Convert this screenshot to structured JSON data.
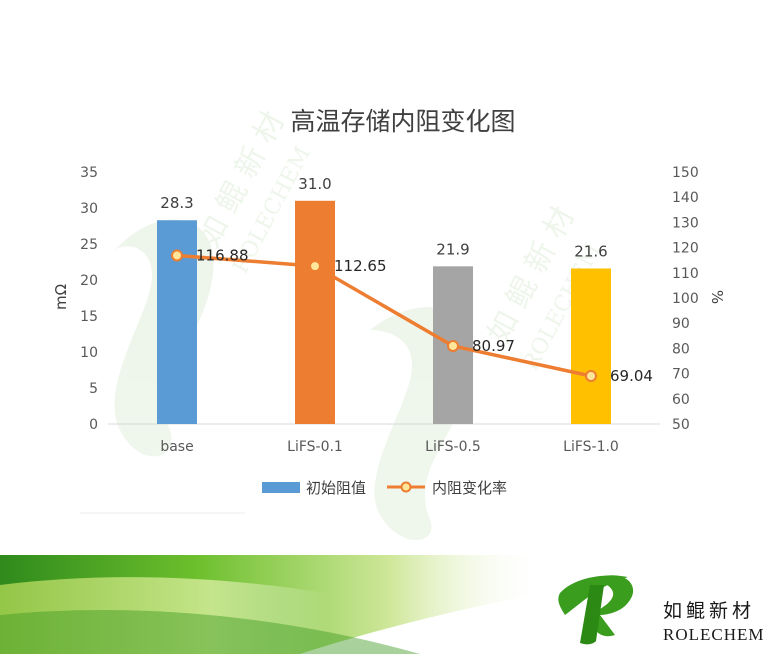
{
  "chart_data": {
    "type": "bar",
    "title": "高温存储内阻变化图",
    "categories": [
      "base",
      "LiFS-0.1",
      "LiFS-0.5",
      "LiFS-1.0"
    ],
    "series": [
      {
        "name": "初始阻值",
        "type": "bar",
        "axis": "left",
        "values": [
          28.3,
          31.0,
          21.9,
          21.6
        ],
        "labels": [
          "28.3",
          "31.0",
          "21.9",
          "21.6"
        ],
        "colors": [
          "#5b9bd5",
          "#ed7d31",
          "#a5a5a5",
          "#ffc000"
        ]
      },
      {
        "name": "内阻变化率",
        "type": "line",
        "axis": "right",
        "values": [
          116.88,
          112.65,
          80.97,
          69.04
        ],
        "labels": [
          "116.88",
          "112.65",
          "80.97",
          "69.04"
        ],
        "color": "#ed7d31"
      }
    ],
    "ylabel": "mΩ",
    "y2label": "%",
    "ylim": [
      0,
      35
    ],
    "y2lim": [
      50,
      150
    ],
    "yticks": [
      "0",
      "5",
      "10",
      "15",
      "20",
      "25",
      "30",
      "35"
    ],
    "y2ticks": [
      "50",
      "60",
      "70",
      "80",
      "90",
      "100",
      "110",
      "120",
      "130",
      "140",
      "150"
    ],
    "legend_position": "bottom",
    "grid": false
  },
  "watermark": {
    "cn": "如 鲲 新 材",
    "en": "ROLECHEM"
  },
  "logo": {
    "cn": "如鲲新材",
    "en": "ROLECHEM"
  }
}
